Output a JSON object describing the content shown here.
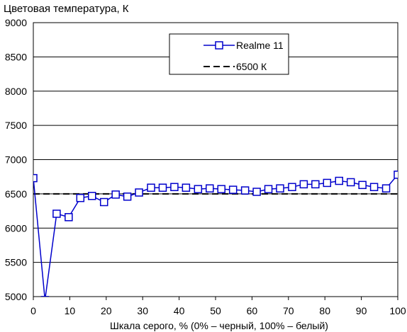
{
  "chart_data": {
    "type": "line",
    "title": "Цветовая температура, К",
    "xlabel": "Шкала серого, % (0% – черный, 100% – белый)",
    "ylabel": "",
    "xlim": [
      0,
      100
    ],
    "ylim": [
      5000,
      9000
    ],
    "x_ticks": [
      0,
      10,
      20,
      30,
      40,
      50,
      60,
      70,
      80,
      90,
      100
    ],
    "y_ticks": [
      5000,
      5500,
      6000,
      6500,
      7000,
      7500,
      8000,
      8500,
      9000
    ],
    "grid": "horizontal",
    "legend_position": "top-center",
    "series": [
      {
        "name": "Realme 11",
        "color": "#0000cc",
        "marker": "square",
        "x": [
          0,
          3.2,
          6.4,
          9.7,
          12.9,
          16.1,
          19.4,
          22.6,
          25.8,
          29.0,
          32.3,
          35.5,
          38.7,
          41.9,
          45.2,
          48.4,
          51.6,
          54.8,
          58.1,
          61.3,
          64.5,
          67.7,
          71.0,
          74.2,
          77.4,
          80.6,
          83.9,
          87.1,
          90.3,
          93.5,
          96.8,
          100
        ],
        "y": [
          6730,
          4950,
          6210,
          6160,
          6440,
          6470,
          6380,
          6490,
          6460,
          6520,
          6590,
          6590,
          6600,
          6590,
          6570,
          6580,
          6570,
          6560,
          6550,
          6530,
          6570,
          6580,
          6600,
          6640,
          6640,
          6660,
          6690,
          6670,
          6630,
          6600,
          6580,
          6780
        ]
      },
      {
        "name": "6500 К",
        "color": "#000000",
        "style": "dashed",
        "x": [
          0,
          100
        ],
        "y": [
          6500,
          6500
        ]
      }
    ]
  }
}
